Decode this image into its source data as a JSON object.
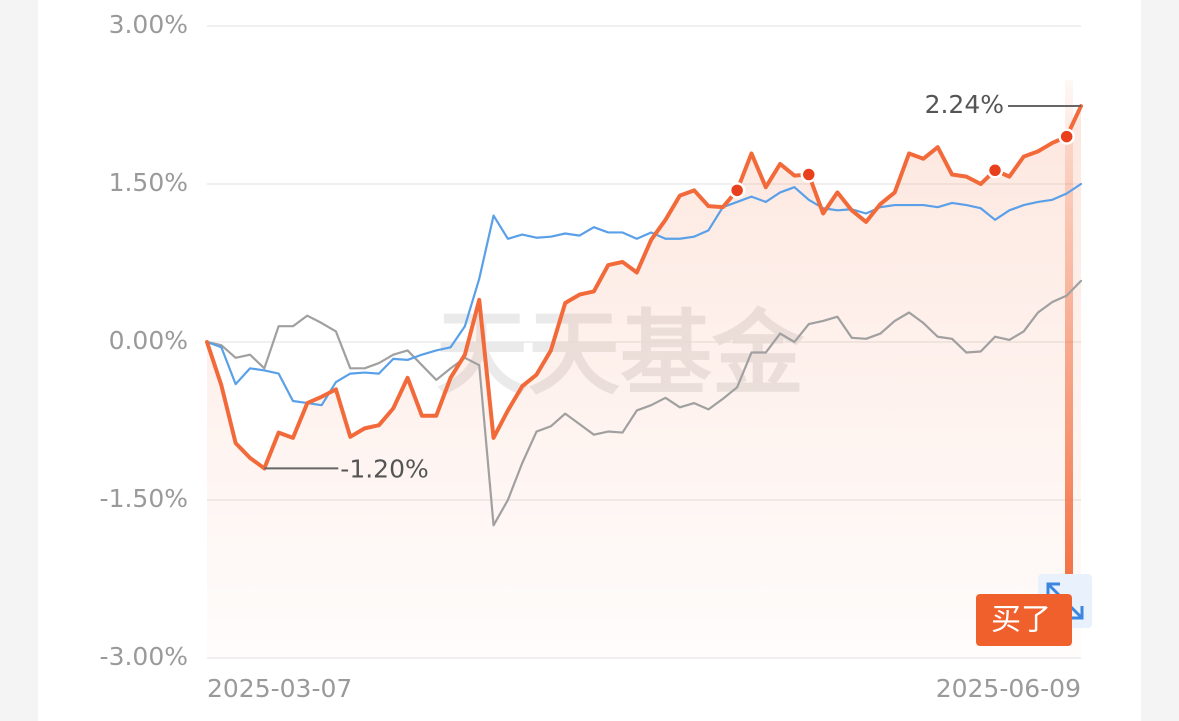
{
  "chart_data": {
    "type": "line",
    "watermark": "天天基金",
    "buy_label": "买了",
    "categories": [
      "2025-03-07",
      null,
      null,
      null,
      null,
      null,
      null,
      null,
      null,
      null,
      null,
      null,
      null,
      null,
      null,
      null,
      null,
      null,
      null,
      null,
      null,
      null,
      null,
      null,
      null,
      null,
      null,
      null,
      null,
      null,
      null,
      null,
      null,
      null,
      null,
      null,
      null,
      null,
      null,
      null,
      null,
      null,
      null,
      null,
      null,
      null,
      null,
      null,
      null,
      null,
      null,
      null,
      null,
      null,
      null,
      null,
      null,
      null,
      null,
      null,
      null,
      "2025-06-09"
    ],
    "ylim": [
      -3,
      3
    ],
    "yticks": [
      {
        "value": 3,
        "label": "3.00%"
      },
      {
        "value": 1.5,
        "label": "1.50%"
      },
      {
        "value": 0,
        "label": "0.00%"
      },
      {
        "value": -1.5,
        "label": "-1.50%"
      },
      {
        "value": -3,
        "label": "-3.00%"
      }
    ],
    "grid": true,
    "buy_markers": [
      37,
      42,
      55,
      60
    ],
    "series": [
      {
        "color": "#f26a3a",
        "values": [
          0.0,
          -0.41,
          -0.96,
          -1.1,
          -1.2,
          -0.86,
          -0.91,
          -0.58,
          -0.52,
          -0.45,
          -0.9,
          -0.82,
          -0.79,
          -0.63,
          -0.34,
          -0.7,
          -0.7,
          -0.34,
          -0.12,
          0.4,
          -0.91,
          -0.65,
          -0.42,
          -0.31,
          -0.08,
          0.37,
          0.45,
          0.48,
          0.73,
          0.76,
          0.66,
          0.97,
          1.16,
          1.39,
          1.44,
          1.29,
          1.28,
          1.44,
          1.79,
          1.47,
          1.69,
          1.58,
          1.59,
          1.22,
          1.42,
          1.25,
          1.14,
          1.31,
          1.42,
          1.79,
          1.74,
          1.85,
          1.59,
          1.57,
          1.5,
          1.63,
          1.57,
          1.76,
          1.81,
          1.89,
          1.95,
          2.24
        ],
        "value_labels": [
          null,
          null,
          null,
          null,
          "-1.20%",
          null,
          null,
          null,
          null,
          null,
          null,
          null,
          null,
          null,
          null,
          null,
          null,
          null,
          null,
          null,
          null,
          null,
          null,
          null,
          null,
          null,
          null,
          null,
          null,
          null,
          null,
          null,
          null,
          null,
          null,
          null,
          null,
          null,
          null,
          null,
          null,
          null,
          null,
          null,
          null,
          null,
          null,
          null,
          null,
          null,
          null,
          null,
          null,
          null,
          null,
          null,
          null,
          null,
          null,
          null,
          null,
          "2.24%"
        ]
      },
      {
        "color": "#5aa0e8",
        "values": [
          0.0,
          -0.05,
          -0.4,
          -0.25,
          -0.27,
          -0.3,
          -0.56,
          -0.58,
          -0.6,
          -0.38,
          -0.3,
          -0.29,
          -0.3,
          -0.16,
          -0.17,
          -0.12,
          -0.08,
          -0.05,
          0.15,
          0.6,
          1.2,
          0.98,
          1.02,
          0.99,
          1.0,
          1.03,
          1.01,
          1.09,
          1.04,
          1.04,
          0.98,
          1.04,
          0.98,
          0.98,
          1.0,
          1.06,
          1.28,
          1.33,
          1.38,
          1.33,
          1.42,
          1.47,
          1.35,
          1.27,
          1.25,
          1.26,
          1.22,
          1.28,
          1.3,
          1.3,
          1.3,
          1.28,
          1.32,
          1.3,
          1.27,
          1.16,
          1.25,
          1.3,
          1.33,
          1.35,
          1.41,
          1.5
        ]
      },
      {
        "color": "#a0a0a0",
        "values": [
          0.0,
          -0.03,
          -0.15,
          -0.12,
          -0.25,
          0.15,
          0.15,
          0.25,
          0.18,
          0.1,
          -0.25,
          -0.25,
          -0.2,
          -0.12,
          -0.08,
          -0.22,
          -0.36,
          -0.25,
          -0.15,
          -0.22,
          -1.74,
          -1.5,
          -1.15,
          -0.85,
          -0.8,
          -0.68,
          -0.78,
          -0.88,
          -0.85,
          -0.86,
          -0.65,
          -0.6,
          -0.53,
          -0.62,
          -0.58,
          -0.64,
          -0.54,
          -0.43,
          -0.1,
          -0.1,
          0.08,
          0.0,
          0.17,
          0.2,
          0.24,
          0.04,
          0.03,
          0.08,
          0.2,
          0.28,
          0.18,
          0.05,
          0.03,
          -0.1,
          -0.09,
          0.05,
          0.02,
          0.1,
          0.28,
          0.38,
          0.44,
          0.58
        ]
      }
    ]
  }
}
